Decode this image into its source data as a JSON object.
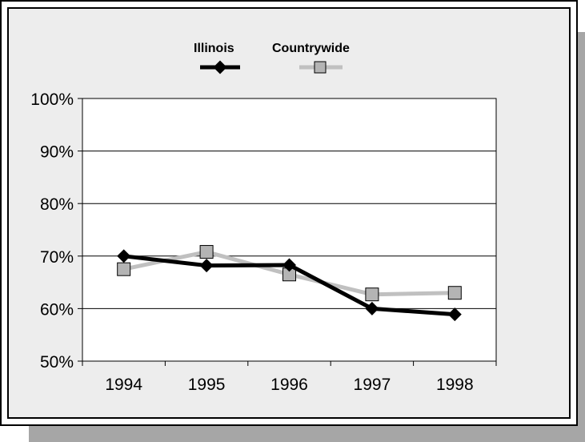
{
  "chart_data": {
    "type": "line",
    "categories": [
      "1994",
      "1995",
      "1996",
      "1997",
      "1998"
    ],
    "series": [
      {
        "name": "Illinois",
        "values": [
          70,
          68.2,
          68.3,
          60,
          58.9
        ],
        "color": "#000000",
        "marker": "diamond"
      },
      {
        "name": "Countrywide",
        "values": [
          67.5,
          70.8,
          66.5,
          62.7,
          63
        ],
        "color": "#c0c0c0",
        "marker": "square"
      }
    ],
    "ylim": [
      50,
      100
    ],
    "yticks": [
      "50%",
      "60%",
      "70%",
      "80%",
      "90%",
      "100%"
    ],
    "ytick_values": [
      50,
      60,
      70,
      80,
      90,
      100
    ],
    "grid": true,
    "legend_position": "top",
    "title": "",
    "xlabel": "",
    "ylabel": ""
  }
}
